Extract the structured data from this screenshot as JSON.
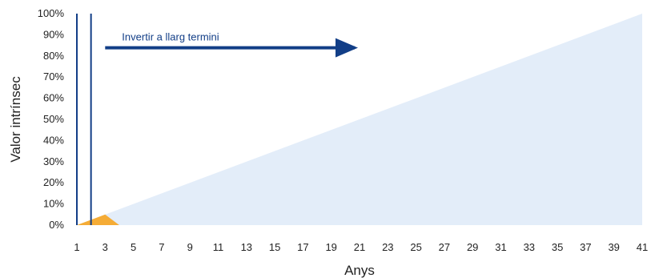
{
  "chart_data": {
    "type": "area",
    "xlabel": "Anys",
    "ylabel": "Valor intrínsec",
    "xlim": [
      1,
      41
    ],
    "ylim": [
      0,
      100
    ],
    "x_ticks": [
      1,
      3,
      5,
      7,
      9,
      11,
      13,
      15,
      17,
      19,
      21,
      23,
      25,
      27,
      29,
      31,
      33,
      35,
      37,
      39,
      41
    ],
    "y_ticks": [
      "0%",
      "10%",
      "20%",
      "30%",
      "40%",
      "50%",
      "60%",
      "70%",
      "80%",
      "90%",
      "100%"
    ],
    "series": [
      {
        "color": "#e3edf9",
        "x": [
          1,
          41
        ],
        "y": [
          0,
          100
        ]
      },
      {
        "color": "#f5ac36",
        "x": [
          1,
          3,
          4
        ],
        "y": [
          0,
          5,
          0
        ]
      }
    ],
    "vertical_lines": [
      {
        "x": 1,
        "color": "#123e87"
      },
      {
        "x": 2,
        "color": "#123e87"
      }
    ],
    "annotation": {
      "text": "Invertir a llarg termini",
      "color": "#123e87",
      "arrow": {
        "x_start": 3,
        "x_end": 21,
        "y": 85
      }
    }
  }
}
